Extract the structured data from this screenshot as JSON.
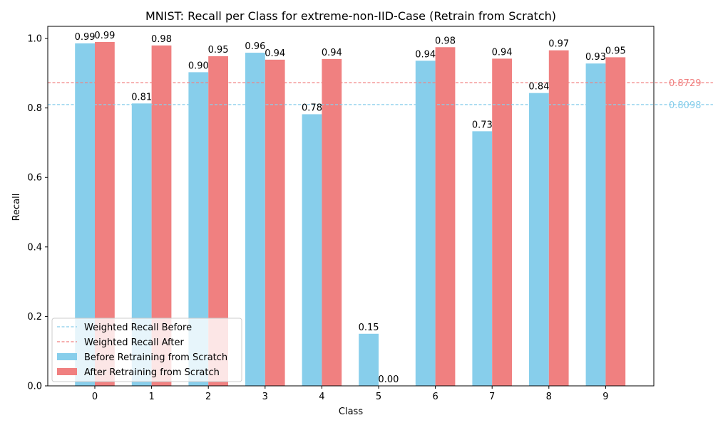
{
  "chart_data": {
    "type": "bar",
    "title": "MNIST: Recall per Class for extreme-non-IID-Case (Retrain from Scratch)",
    "xlabel": "Class",
    "ylabel": "Recall",
    "categories": [
      "0",
      "1",
      "2",
      "3",
      "4",
      "5",
      "6",
      "7",
      "8",
      "9"
    ],
    "ylim": [
      0,
      1.035
    ],
    "yticks": [
      "0.0",
      "0.2",
      "0.4",
      "0.6",
      "0.8",
      "1.0"
    ],
    "grid": false,
    "legend_position": "lower-left",
    "series": [
      {
        "name": "Before Retraining from Scratch",
        "color": "#87CEEB",
        "values": [
          0.986,
          0.813,
          0.903,
          0.959,
          0.782,
          0.15,
          0.936,
          0.733,
          0.843,
          0.928
        ],
        "labels": [
          "0.99",
          "0.81",
          "0.90",
          "0.96",
          "0.78",
          "0.15",
          "0.94",
          "0.73",
          "0.84",
          "0.93"
        ]
      },
      {
        "name": "After Retraining from Scratch",
        "color": "#F08080",
        "values": [
          0.99,
          0.98,
          0.949,
          0.939,
          0.941,
          0.0,
          0.975,
          0.942,
          0.966,
          0.946
        ],
        "labels": [
          "0.99",
          "0.98",
          "0.95",
          "0.94",
          "0.94",
          "0.00",
          "0.98",
          "0.94",
          "0.97",
          "0.95"
        ]
      }
    ],
    "reference_lines": [
      {
        "name": "Weighted Recall Before",
        "value": 0.8098,
        "label": "0.8098",
        "color": "#87CEEB"
      },
      {
        "name": "Weighted Recall After",
        "value": 0.8729,
        "label": "0.8729",
        "color": "#F08080"
      }
    ]
  }
}
